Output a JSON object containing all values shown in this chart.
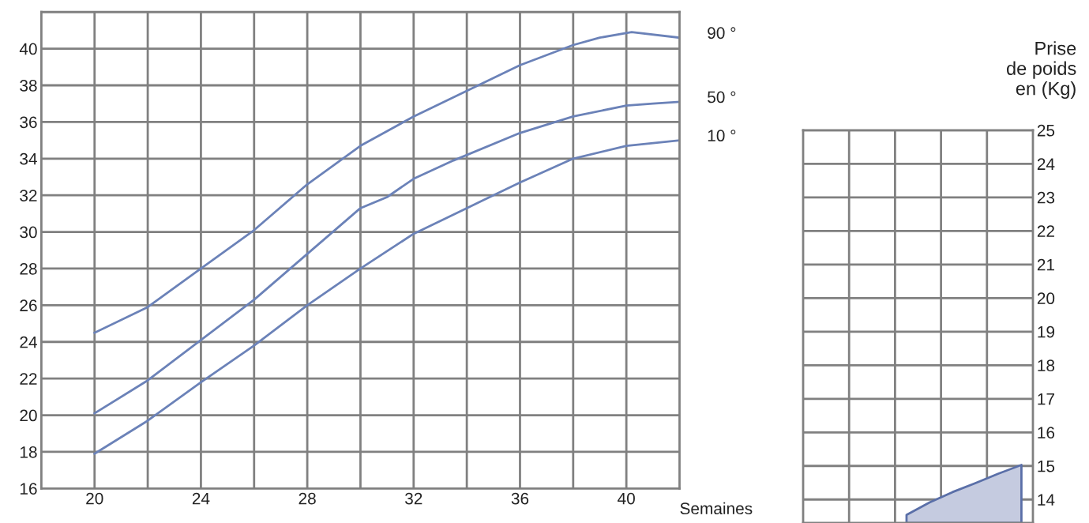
{
  "chart_data": [
    {
      "type": "line",
      "xlabel": "Semaines",
      "xlim": [
        18,
        42
      ],
      "ylim": [
        16,
        42
      ],
      "xticks": [
        20,
        {
          "value": 22,
          "label": null
        },
        24,
        {
          "value": 26,
          "label": null
        },
        28,
        {
          "value": 30,
          "label": null
        },
        32,
        {
          "value": 34,
          "label": null
        },
        36,
        {
          "value": 38,
          "label": null
        },
        40
      ],
      "yticks": [
        16,
        18,
        20,
        22,
        24,
        26,
        28,
        30,
        32,
        34,
        36,
        38,
        40,
        {
          "value": 42,
          "label": null
        }
      ],
      "grid": true,
      "marker": "none",
      "line_style": "solid",
      "series": [
        {
          "name": "90 °",
          "color": "#6b82b8",
          "x": [
            20,
            22,
            24,
            26,
            28,
            30,
            32,
            34,
            36,
            38,
            39,
            40.2,
            42
          ],
          "values": [
            24.5,
            25.9,
            28.0,
            30.1,
            32.6,
            34.7,
            36.3,
            37.7,
            39.1,
            40.2,
            40.6,
            40.9,
            40.6
          ]
        },
        {
          "name": "50 °",
          "color": "#6b82b8",
          "x": [
            20,
            22,
            24,
            26,
            28,
            30,
            31,
            32,
            33.5,
            36,
            38,
            40,
            41,
            42
          ],
          "values": [
            20.1,
            21.9,
            24.1,
            26.3,
            28.8,
            31.3,
            31.9,
            32.9,
            33.9,
            35.4,
            36.3,
            36.9,
            37.0,
            37.1
          ]
        },
        {
          "name": "10 °",
          "color": "#6b82b8",
          "x": [
            20,
            22,
            24,
            26,
            28,
            30,
            32,
            34,
            36,
            38,
            40,
            42
          ],
          "values": [
            17.9,
            19.7,
            21.8,
            23.8,
            26.0,
            28.0,
            29.9,
            31.3,
            32.7,
            34.0,
            34.7,
            35.0
          ]
        }
      ]
    },
    {
      "type": "area",
      "ylabel": "Prise\nde poids\nen (Kg)",
      "categories": [
        null,
        null,
        null,
        null,
        null,
        null,
        null,
        null,
        null,
        null
      ],
      "ylim": [
        13.3,
        25
      ],
      "yticks": [
        14,
        15,
        16,
        17,
        18,
        19,
        20,
        21,
        22,
        23,
        24,
        25
      ],
      "grid": true,
      "series": [
        {
          "color": "#c5cbe0",
          "values": [
            null,
            null,
            null,
            null,
            13.54,
            13.91,
            14.22,
            14.49,
            14.77,
            15.03
          ]
        }
      ]
    }
  ]
}
